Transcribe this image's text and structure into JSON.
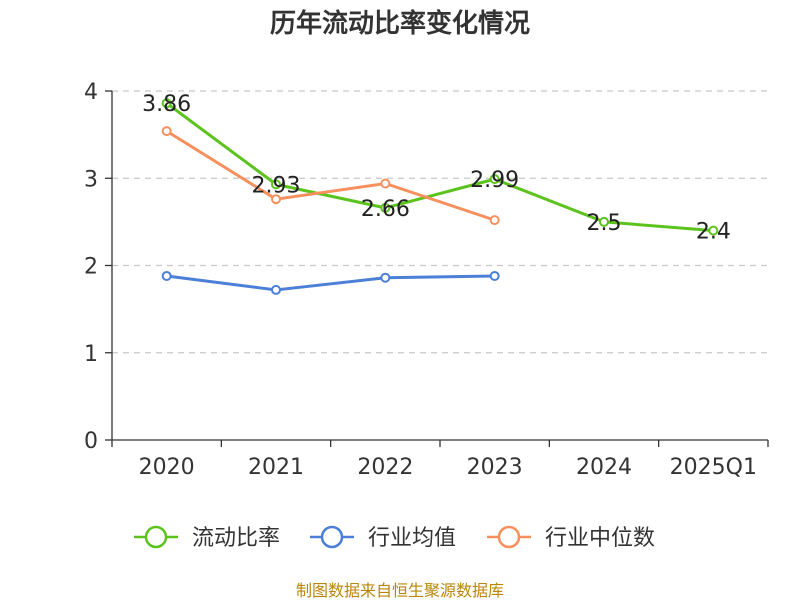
{
  "title": "历年流动比率变化情况",
  "source": "制图数据来自恒生聚源数据库",
  "colors": {
    "current_ratio": "#5cc31e",
    "industry_avg": "#4b7fd8",
    "industry_median": "#f7905c",
    "grid": "#c8c8c8",
    "axis": "#333333"
  },
  "chart_data": {
    "type": "line",
    "title": "历年流动比率变化情况",
    "categories": [
      "2020",
      "2021",
      "2022",
      "2023",
      "2024",
      "2025Q1"
    ],
    "ylim": [
      0,
      4
    ],
    "yticks": [
      0,
      1,
      2,
      3,
      4
    ],
    "grid": true,
    "legend_position": "bottom",
    "series": [
      {
        "name": "流动比率",
        "key": "current_ratio",
        "values": [
          3.86,
          2.93,
          2.66,
          2.99,
          2.5,
          2.4
        ],
        "labels": [
          "3.86",
          "2.93",
          "2.66",
          "2.99",
          "2.5",
          "2.4"
        ]
      },
      {
        "name": "行业均值",
        "key": "industry_avg",
        "values": [
          1.88,
          1.72,
          1.86,
          1.88,
          null,
          null
        ]
      },
      {
        "name": "行业中位数",
        "key": "industry_median",
        "values": [
          3.54,
          2.76,
          2.94,
          2.52,
          null,
          null
        ]
      }
    ]
  }
}
